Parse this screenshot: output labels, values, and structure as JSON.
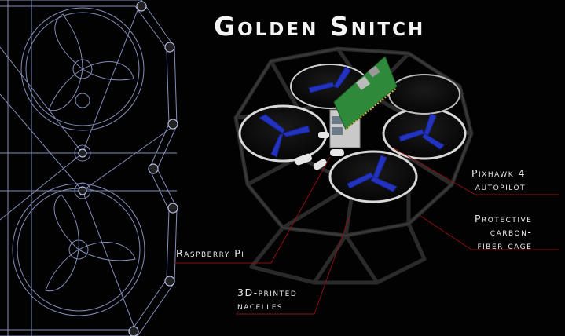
{
  "title": "Golden Snitch",
  "callouts": {
    "pixhawk": [
      "Pixhawk 4",
      "autopilot"
    ],
    "cage": [
      "Protective",
      "carbon-",
      "fiber cage"
    ],
    "raspberry": [
      "Raspberry Pi"
    ],
    "nacelles": [
      "3D-printed",
      "nacelles"
    ]
  },
  "colors": {
    "background": "#020202",
    "blueprint_lines": "#9aa6d8",
    "leader_lines": "#8a1010",
    "propellers": "#2233c0",
    "board": "#2e8a3a",
    "text": "#e8e8e8"
  }
}
